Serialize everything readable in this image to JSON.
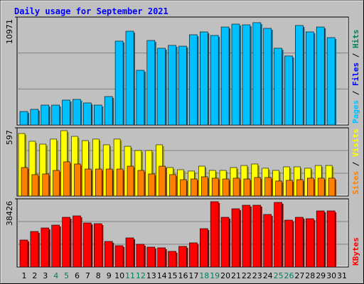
{
  "chart_data": [
    {
      "type": "bar",
      "title": "Daily usage for September 2021",
      "ylim": [
        0,
        10971
      ],
      "yticks": [
        10971
      ],
      "legend": [
        {
          "name": "Pages",
          "color": "#00C0FF"
        },
        {
          "name": "Files",
          "color": "#0000FF"
        },
        {
          "name": "Hits",
          "color": "#00805C"
        }
      ],
      "legend_separator": " / ",
      "series": [
        {
          "color": "#00C0FF",
          "values": [
            1370,
            1590,
            2020,
            2020,
            2530,
            2600,
            2240,
            2020,
            2890,
            8520,
            9530,
            5560,
            8590,
            7800,
            8090,
            8010,
            9170,
            9460,
            9100,
            9960,
            10250,
            10180,
            10400,
            9820,
            7800,
            7010,
            10110,
            9460,
            9960,
            8880,
            null
          ]
        }
      ]
    },
    {
      "type": "bar",
      "ylim": [
        0,
        597
      ],
      "yticks": [
        597
      ],
      "legend": [
        {
          "name": "Sites",
          "color": "#FF8000"
        },
        {
          "name": "Visits",
          "color": "#FFFF00"
        }
      ],
      "legend_separator": " / ",
      "series": [
        {
          "color": "#FFFF00",
          "values": [
            547,
            479,
            454,
            498,
            572,
            522,
            485,
            498,
            448,
            498,
            435,
            398,
            398,
            448,
            249,
            230,
            218,
            261,
            224,
            224,
            249,
            267,
            280,
            243,
            224,
            255,
            255,
            243,
            267,
            267,
            null
          ]
        },
        {
          "color": "#FF8000",
          "values": [
            249,
            187,
            193,
            224,
            299,
            280,
            236,
            236,
            236,
            236,
            261,
            224,
            193,
            261,
            187,
            143,
            149,
            168,
            156,
            149,
            156,
            149,
            162,
            162,
            131,
            137,
            143,
            156,
            156,
            156,
            null
          ]
        }
      ]
    },
    {
      "type": "bar",
      "ylim": [
        0,
        38426
      ],
      "yticks": [
        38426
      ],
      "legend": [
        {
          "name": "KBytes",
          "color": "#FF0000"
        }
      ],
      "categories": [
        "1",
        "2",
        "3",
        "4",
        "5",
        "6",
        "7",
        "8",
        "9",
        "10",
        "11",
        "12",
        "13",
        "14",
        "15",
        "16",
        "17",
        "18",
        "19",
        "20",
        "21",
        "22",
        "23",
        "24",
        "25",
        "26",
        "27",
        "28",
        "29",
        "30",
        "31"
      ],
      "category_colors": [
        "#000000",
        "#000000",
        "#000000",
        "#00805C",
        "#00805C",
        "#000000",
        "#000000",
        "#000000",
        "#000000",
        "#000000",
        "#00805C",
        "#00805C",
        "#000000",
        "#000000",
        "#000000",
        "#000000",
        "#000000",
        "#00805C",
        "#00805C",
        "#000000",
        "#000000",
        "#000000",
        "#000000",
        "#000000",
        "#00805C",
        "#00805C",
        "#000000",
        "#000000",
        "#000000",
        "#000000",
        "#000000"
      ],
      "series": [
        {
          "color": "#FF0000",
          "values": [
            15210,
            20020,
            22010,
            23620,
            28020,
            28820,
            24820,
            24420,
            14410,
            12010,
            16410,
            12810,
            11210,
            10810,
            8810,
            11610,
            13610,
            21610,
            36820,
            28020,
            32820,
            34820,
            34820,
            29620,
            36420,
            26420,
            28020,
            27220,
            31620,
            31620,
            null
          ]
        }
      ]
    }
  ]
}
